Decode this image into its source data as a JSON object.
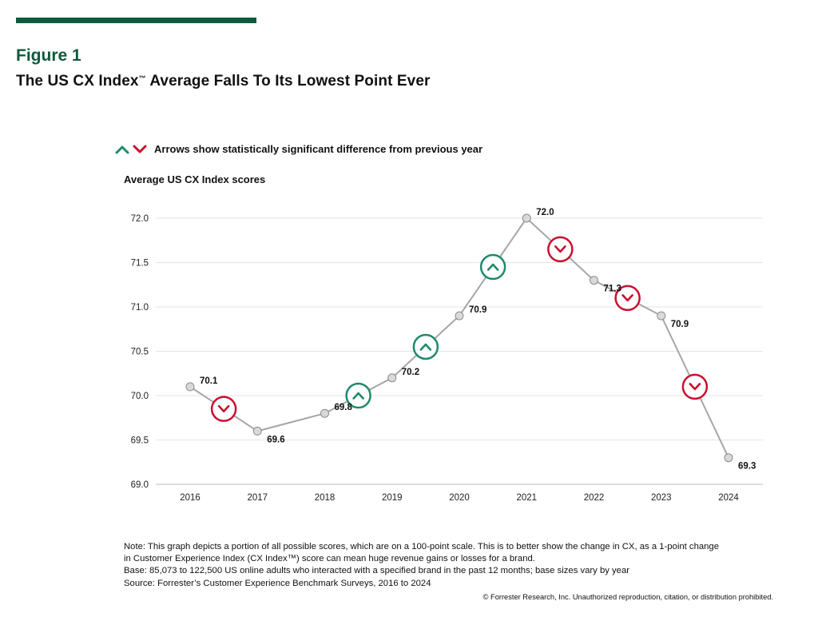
{
  "header": {
    "figure_label": "Figure 1",
    "title_pre": "The US CX Index",
    "title_tm": "™",
    "title_post": " Average Falls To Its Lowest Point Ever"
  },
  "legend": {
    "text": "Arrows show statistically significant difference from previous year",
    "up_color": "#1e8a6a",
    "down_color": "#c8102e"
  },
  "chart_data": {
    "type": "line",
    "subtitle": "Average US CX Index scores",
    "x": [
      "2016",
      "2017",
      "2018",
      "2019",
      "2020",
      "2021",
      "2022",
      "2023",
      "2024"
    ],
    "series": [
      {
        "values": [
          70.1,
          69.6,
          69.8,
          70.2,
          70.9,
          72.0,
          71.3,
          70.9,
          69.3
        ]
      }
    ],
    "data_labels": [
      "70.1",
      "69.6",
      "69.8",
      "70.2",
      "70.9",
      "72.0",
      "71.3",
      "70.9",
      "69.3"
    ],
    "ylim": [
      69.0,
      72.0
    ],
    "yticks": [
      "69.0",
      "69.5",
      "70.0",
      "70.5",
      "71.0",
      "71.5",
      "72.0"
    ],
    "grid": true,
    "significance": [
      {
        "between": [
          "2016",
          "2017"
        ],
        "direction": "down"
      },
      {
        "between": [
          "2018",
          "2019"
        ],
        "direction": "up"
      },
      {
        "between": [
          "2019",
          "2020"
        ],
        "direction": "up"
      },
      {
        "between": [
          "2020",
          "2021"
        ],
        "direction": "up"
      },
      {
        "between": [
          "2021",
          "2022"
        ],
        "direction": "down"
      },
      {
        "between": [
          "2022",
          "2023"
        ],
        "direction": "down"
      },
      {
        "between": [
          "2023",
          "2024"
        ],
        "direction": "down"
      }
    ],
    "line_color": "#a6a6a6",
    "marker_color": "#d9d9d9"
  },
  "notes": {
    "line1": "Note: This graph depicts a portion of all possible scores, which are on a 100-point scale. This is to better show the change in CX, as a 1-point change",
    "line2": "in Customer Experience Index (CX Index™) score can mean huge revenue gains or losses for a brand.",
    "line3": "Base: 85,073 to 122,500 US online adults who interacted with a specified brand in the past 12 months; base sizes vary by year",
    "line4": "Source: Forrester’s Customer Experience Benchmark Surveys, 2016 to 2024"
  },
  "copyright": "© Forrester Research, Inc. Unauthorized reproduction, citation, or distribution prohibited."
}
